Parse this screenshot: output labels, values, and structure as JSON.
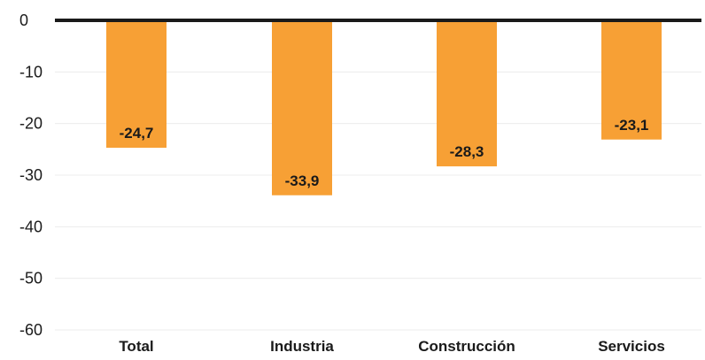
{
  "chart_data": {
    "type": "bar",
    "categories": [
      "Total",
      "Industria",
      "Construcción",
      "Servicios"
    ],
    "values": [
      -24.7,
      -33.9,
      -28.3,
      -23.1
    ],
    "value_labels": [
      "-24,7",
      "-33,9",
      "-28,3",
      "-23,1"
    ],
    "ylim": [
      -60,
      0
    ],
    "yticks": [
      0,
      -10,
      -20,
      -30,
      -40,
      -50,
      -60
    ],
    "ytick_labels": [
      "0",
      "-10",
      "-20",
      "-30",
      "-40",
      "-50",
      "-60"
    ],
    "title": "",
    "xlabel": "",
    "ylabel": "",
    "grid": true,
    "legend": "none",
    "colors": {
      "bar": "#f7a035",
      "zero_line": "#1a1a1a",
      "grid": "#ececec",
      "text": "#1a1a1a"
    }
  }
}
